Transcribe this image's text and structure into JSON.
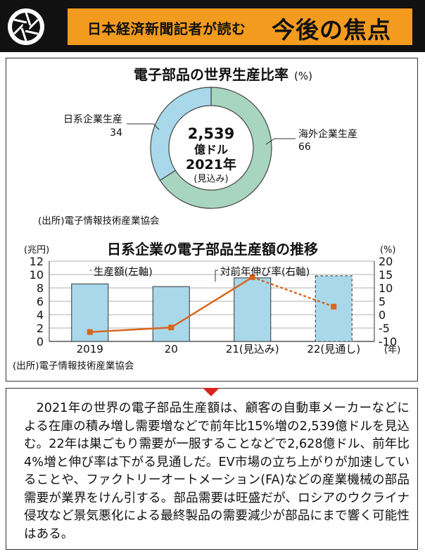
{
  "header": {
    "subtitle": "日本経済新聞記者が読む",
    "title": "今後の焦点",
    "icon": "camera-shutter-icon",
    "accent_color": "#f29b1f"
  },
  "chart_data": [
    {
      "type": "pie",
      "title": "電子部品の世界生産比率",
      "unit": "(%)",
      "slices": [
        {
          "label": "日系企業生産",
          "value": 34,
          "color": "#a8d8ea"
        },
        {
          "label": "海外企業生産",
          "value": 66,
          "color": "#a8d5bf"
        }
      ],
      "center": {
        "value": "2,539",
        "unit": "億ドル",
        "year": "2021年",
        "note": "(見込み)"
      },
      "source": "(出所)電子情報技術産業協会"
    },
    {
      "type": "bar",
      "title": "日系企業の電子部品生産額の推移",
      "categories": [
        "2019",
        "20",
        "21(見込み)",
        "22(見通し)"
      ],
      "x_unit": "(年)",
      "left_axis": {
        "unit": "(兆円)",
        "ticks": [
          "12",
          "10",
          "8",
          "6",
          "4",
          "2",
          "0"
        ],
        "ylim": [
          0,
          12
        ]
      },
      "right_axis": {
        "unit": "(%)",
        "ticks": [
          "20",
          "15",
          "10",
          "5",
          "0",
          "-5",
          "-10"
        ],
        "ylim": [
          -10,
          20
        ]
      },
      "series": [
        {
          "name": "生産額(左軸)",
          "type": "bar",
          "values": [
            8.6,
            8.2,
            9.5,
            9.8
          ],
          "projected_from_index": 3,
          "color": "#a8d8ea"
        },
        {
          "name": "対前年伸び率(右軸)",
          "type": "line",
          "values": [
            -6.5,
            -4.8,
            14.0,
            3.0
          ],
          "projected_from_index": 2,
          "color": "#d9651b"
        }
      ],
      "source": "(出所)電子情報技術産業協会"
    }
  ],
  "article": {
    "text": "2021年の世界の電子部品生産額は、顧客の自動車メーカーなどによる在庫の積み増し需要増などで前年比15%増の2,539億ドルを見込む。22年は巣ごもり需要が一服することなどで2,628億ドル、前年比4%増と伸び率は下がる見通しだ。EV市場の立ち上がりが加速していることや、ファクトリーオートメーション(FA)などの産業機械の部品需要が業界をけん引する。部品需要は旺盛だが、ロシアのウクライナ侵攻など景気悪化による最終製品の需要減少が部品にまで響く可能性はある。"
  }
}
